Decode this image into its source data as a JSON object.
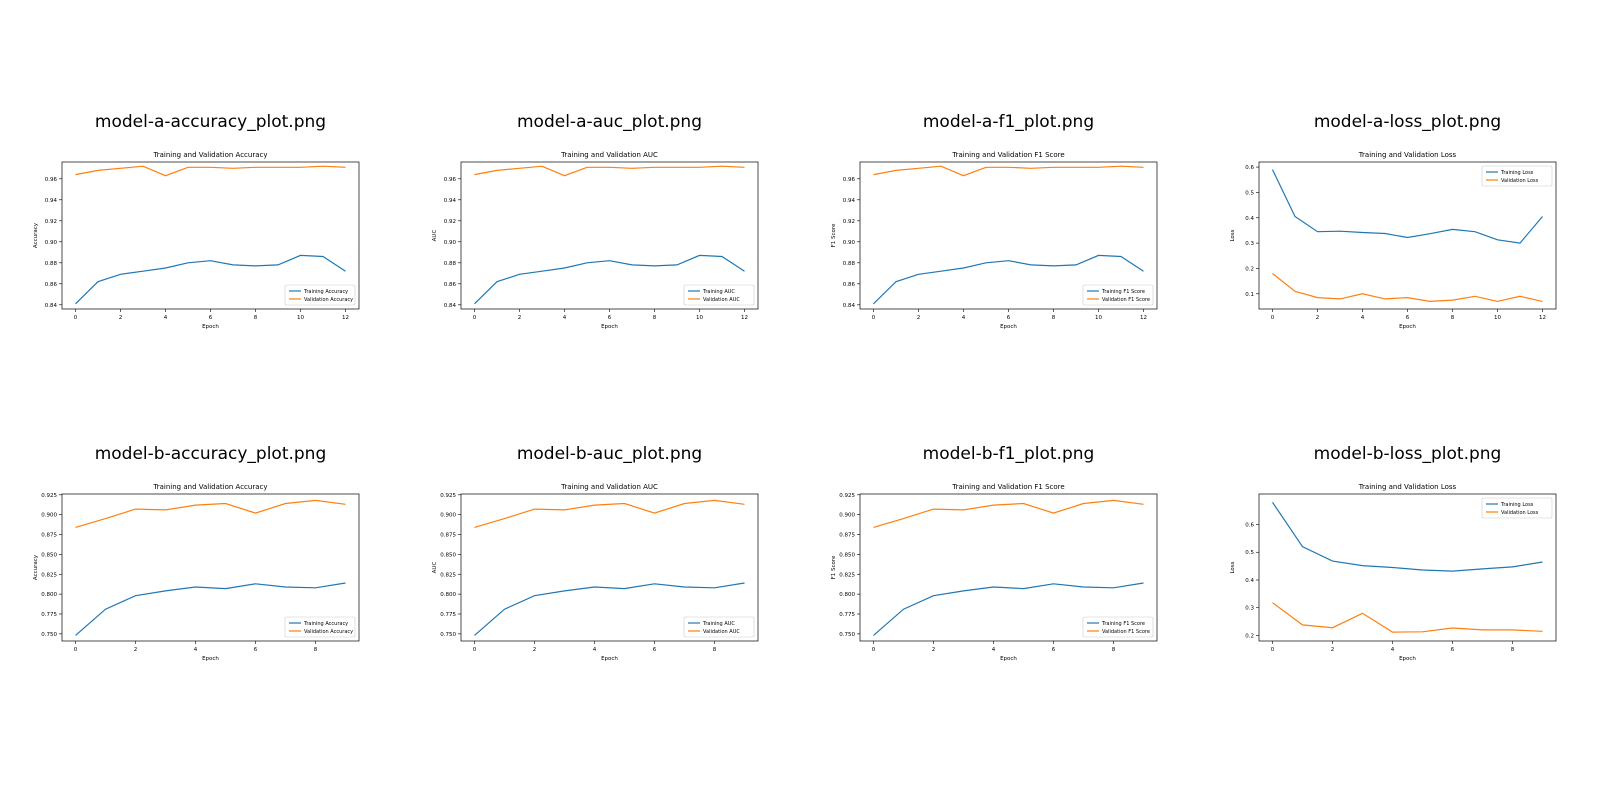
{
  "colors": {
    "training": "#1f77b4",
    "validation": "#ff7f0e",
    "axis": "#000000"
  },
  "chart_data": [
    {
      "type": "line",
      "panel_label": "model-a-accuracy_plot.png",
      "title": "Training and Validation Accuracy",
      "xlabel": "Epoch",
      "ylabel": "Accuracy",
      "xlim": [
        -0.6,
        12.6
      ],
      "ylim": [
        0.836,
        0.976
      ],
      "xticks": [
        0,
        2,
        4,
        6,
        8,
        10,
        12
      ],
      "yticks": [
        0.84,
        0.86,
        0.88,
        0.9,
        0.92,
        0.94,
        0.96
      ],
      "ytick_decimals": 2,
      "legend_loc": "lower-right",
      "x": [
        0,
        1,
        2,
        3,
        4,
        5,
        6,
        7,
        8,
        9,
        10,
        11,
        12
      ],
      "series": [
        {
          "name": "Training Accuracy",
          "color": "training",
          "values": [
            0.841,
            0.862,
            0.869,
            0.872,
            0.875,
            0.88,
            0.882,
            0.878,
            0.877,
            0.878,
            0.887,
            0.886,
            0.872
          ]
        },
        {
          "name": "Validation Accuracy",
          "color": "validation",
          "values": [
            0.964,
            0.968,
            0.97,
            0.972,
            0.963,
            0.971,
            0.971,
            0.97,
            0.971,
            0.971,
            0.971,
            0.972,
            0.971
          ]
        }
      ]
    },
    {
      "type": "line",
      "panel_label": "model-a-auc_plot.png",
      "title": "Training and Validation AUC",
      "xlabel": "Epoch",
      "ylabel": "AUC",
      "xlim": [
        -0.6,
        12.6
      ],
      "ylim": [
        0.836,
        0.976
      ],
      "xticks": [
        0,
        2,
        4,
        6,
        8,
        10,
        12
      ],
      "yticks": [
        0.84,
        0.86,
        0.88,
        0.9,
        0.92,
        0.94,
        0.96
      ],
      "ytick_decimals": 2,
      "legend_loc": "lower-right",
      "x": [
        0,
        1,
        2,
        3,
        4,
        5,
        6,
        7,
        8,
        9,
        10,
        11,
        12
      ],
      "series": [
        {
          "name": "Training AUC",
          "color": "training",
          "values": [
            0.841,
            0.862,
            0.869,
            0.872,
            0.875,
            0.88,
            0.882,
            0.878,
            0.877,
            0.878,
            0.887,
            0.886,
            0.872
          ]
        },
        {
          "name": "Validation AUC",
          "color": "validation",
          "values": [
            0.964,
            0.968,
            0.97,
            0.972,
            0.963,
            0.971,
            0.971,
            0.97,
            0.971,
            0.971,
            0.971,
            0.972,
            0.971
          ]
        }
      ]
    },
    {
      "type": "line",
      "panel_label": "model-a-f1_plot.png",
      "title": "Training and Validation F1 Score",
      "xlabel": "Epoch",
      "ylabel": "F1 Score",
      "xlim": [
        -0.6,
        12.6
      ],
      "ylim": [
        0.836,
        0.976
      ],
      "xticks": [
        0,
        2,
        4,
        6,
        8,
        10,
        12
      ],
      "yticks": [
        0.84,
        0.86,
        0.88,
        0.9,
        0.92,
        0.94,
        0.96
      ],
      "ytick_decimals": 2,
      "legend_loc": "lower-right",
      "x": [
        0,
        1,
        2,
        3,
        4,
        5,
        6,
        7,
        8,
        9,
        10,
        11,
        12
      ],
      "series": [
        {
          "name": "Training F1 Score",
          "color": "training",
          "values": [
            0.841,
            0.862,
            0.869,
            0.872,
            0.875,
            0.88,
            0.882,
            0.878,
            0.877,
            0.878,
            0.887,
            0.886,
            0.872
          ]
        },
        {
          "name": "Validation F1 Score",
          "color": "validation",
          "values": [
            0.964,
            0.968,
            0.97,
            0.972,
            0.963,
            0.971,
            0.971,
            0.97,
            0.971,
            0.971,
            0.971,
            0.972,
            0.971
          ]
        }
      ]
    },
    {
      "type": "line",
      "panel_label": "model-a-loss_plot.png",
      "title": "Training and Validation Loss",
      "xlabel": "Epoch",
      "ylabel": "Loss",
      "xlim": [
        -0.6,
        12.6
      ],
      "ylim": [
        0.04,
        0.62
      ],
      "xticks": [
        0,
        2,
        4,
        6,
        8,
        10,
        12
      ],
      "yticks": [
        0.1,
        0.2,
        0.3,
        0.4,
        0.5,
        0.6
      ],
      "ytick_decimals": 1,
      "legend_loc": "upper-right",
      "x": [
        0,
        1,
        2,
        3,
        4,
        5,
        6,
        7,
        8,
        9,
        10,
        11,
        12
      ],
      "series": [
        {
          "name": "Training Loss",
          "color": "training",
          "values": [
            0.59,
            0.405,
            0.345,
            0.347,
            0.342,
            0.338,
            0.322,
            0.337,
            0.354,
            0.345,
            0.313,
            0.3,
            0.405
          ]
        },
        {
          "name": "Validation Loss",
          "color": "validation",
          "values": [
            0.18,
            0.11,
            0.085,
            0.08,
            0.1,
            0.08,
            0.085,
            0.07,
            0.075,
            0.09,
            0.07,
            0.09,
            0.07
          ]
        }
      ]
    },
    {
      "type": "line",
      "panel_label": "model-b-accuracy_plot.png",
      "title": "Training and Validation Accuracy",
      "xlabel": "Epoch",
      "ylabel": "Accuracy",
      "xlim": [
        -0.45,
        9.45
      ],
      "ylim": [
        0.741,
        0.926
      ],
      "xticks": [
        0,
        2,
        4,
        6,
        8
      ],
      "yticks": [
        0.75,
        0.775,
        0.8,
        0.825,
        0.85,
        0.875,
        0.9,
        0.925
      ],
      "ytick_decimals": 3,
      "legend_loc": "lower-right",
      "x": [
        0,
        1,
        2,
        3,
        4,
        5,
        6,
        7,
        8,
        9
      ],
      "series": [
        {
          "name": "Training Accuracy",
          "color": "training",
          "values": [
            0.748,
            0.781,
            0.798,
            0.804,
            0.809,
            0.807,
            0.813,
            0.809,
            0.808,
            0.814
          ]
        },
        {
          "name": "Validation Accuracy",
          "color": "validation",
          "values": [
            0.884,
            0.895,
            0.907,
            0.906,
            0.912,
            0.914,
            0.902,
            0.914,
            0.918,
            0.913
          ]
        }
      ]
    },
    {
      "type": "line",
      "panel_label": "model-b-auc_plot.png",
      "title": "Training and Validation AUC",
      "xlabel": "Epoch",
      "ylabel": "AUC",
      "xlim": [
        -0.45,
        9.45
      ],
      "ylim": [
        0.741,
        0.926
      ],
      "xticks": [
        0,
        2,
        4,
        6,
        8
      ],
      "yticks": [
        0.75,
        0.775,
        0.8,
        0.825,
        0.85,
        0.875,
        0.9,
        0.925
      ],
      "ytick_decimals": 3,
      "legend_loc": "lower-right",
      "x": [
        0,
        1,
        2,
        3,
        4,
        5,
        6,
        7,
        8,
        9
      ],
      "series": [
        {
          "name": "Training AUC",
          "color": "training",
          "values": [
            0.748,
            0.781,
            0.798,
            0.804,
            0.809,
            0.807,
            0.813,
            0.809,
            0.808,
            0.814
          ]
        },
        {
          "name": "Validation AUC",
          "color": "validation",
          "values": [
            0.884,
            0.895,
            0.907,
            0.906,
            0.912,
            0.914,
            0.902,
            0.914,
            0.918,
            0.913
          ]
        }
      ]
    },
    {
      "type": "line",
      "panel_label": "model-b-f1_plot.png",
      "title": "Training and Validation F1 Score",
      "xlabel": "Epoch",
      "ylabel": "F1 Score",
      "xlim": [
        -0.45,
        9.45
      ],
      "ylim": [
        0.741,
        0.926
      ],
      "xticks": [
        0,
        2,
        4,
        6,
        8
      ],
      "yticks": [
        0.75,
        0.775,
        0.8,
        0.825,
        0.85,
        0.875,
        0.9,
        0.925
      ],
      "ytick_decimals": 3,
      "legend_loc": "lower-right",
      "x": [
        0,
        1,
        2,
        3,
        4,
        5,
        6,
        7,
        8,
        9
      ],
      "series": [
        {
          "name": "Training F1 Score",
          "color": "training",
          "values": [
            0.748,
            0.781,
            0.798,
            0.804,
            0.809,
            0.807,
            0.813,
            0.809,
            0.808,
            0.814
          ]
        },
        {
          "name": "Validation F1 Score",
          "color": "validation",
          "values": [
            0.884,
            0.895,
            0.907,
            0.906,
            0.912,
            0.914,
            0.902,
            0.914,
            0.918,
            0.913
          ]
        }
      ]
    },
    {
      "type": "line",
      "panel_label": "model-b-loss_plot.png",
      "title": "Training and Validation Loss",
      "xlabel": "Epoch",
      "ylabel": "Loss",
      "xlim": [
        -0.45,
        9.45
      ],
      "ylim": [
        0.18,
        0.71
      ],
      "xticks": [
        0,
        2,
        4,
        6,
        8
      ],
      "yticks": [
        0.2,
        0.3,
        0.4,
        0.5,
        0.6
      ],
      "ytick_decimals": 1,
      "legend_loc": "upper-right",
      "x": [
        0,
        1,
        2,
        3,
        4,
        5,
        6,
        7,
        8,
        9
      ],
      "series": [
        {
          "name": "Training Loss",
          "color": "training",
          "values": [
            0.68,
            0.52,
            0.468,
            0.452,
            0.445,
            0.436,
            0.432,
            0.44,
            0.447,
            0.465
          ]
        },
        {
          "name": "Validation Loss",
          "color": "validation",
          "values": [
            0.318,
            0.238,
            0.228,
            0.28,
            0.212,
            0.213,
            0.227,
            0.22,
            0.22,
            0.215
          ]
        }
      ]
    }
  ]
}
